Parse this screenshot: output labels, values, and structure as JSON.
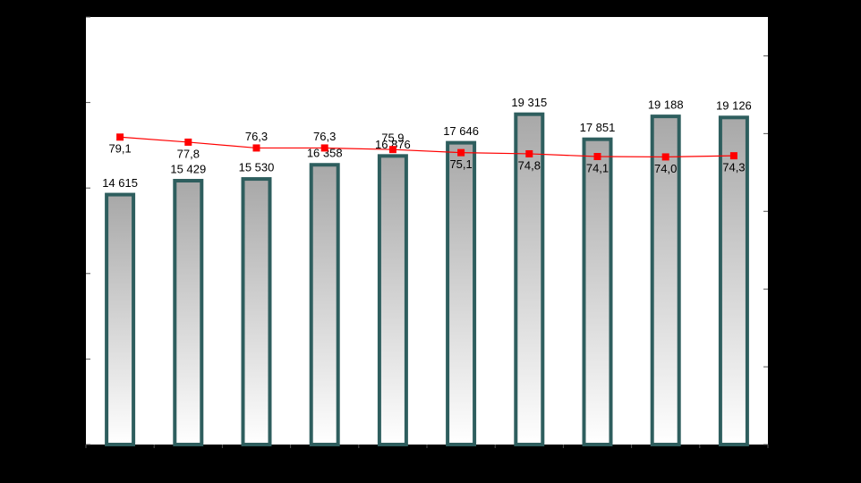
{
  "chart_data": {
    "type": "bar-line",
    "categories": [
      null,
      null,
      null,
      null,
      null,
      null,
      null,
      null,
      null,
      null
    ],
    "series": [
      {
        "type": "bar",
        "color": "#2e5e5e",
        "values": [
          14615,
          15429,
          15530,
          16358,
          16876,
          17646,
          19315,
          17851,
          19188,
          19126
        ],
        "value_labels": [
          "14 615",
          "15 429",
          "15 530",
          "16 358",
          "16 876",
          "17 646",
          "19 315",
          "17 851",
          "19 188",
          "19 126"
        ]
      },
      {
        "type": "line",
        "axis": "y2",
        "color": "#ff0000",
        "values": [
          79.1,
          77.8,
          76.3,
          76.3,
          75.9,
          75.1,
          74.8,
          74.1,
          74.0,
          74.3
        ],
        "value_labels": [
          "79,1",
          "77,8",
          "76,3",
          "76,3",
          "75,9",
          "75,1",
          "74,8",
          "74,1",
          "74,0",
          "74,3"
        ]
      }
    ],
    "ylim": [
      0,
      25000
    ],
    "yticks": [
      0,
      5000,
      10000,
      15000,
      20000,
      25000
    ],
    "y2lim": [
      0,
      110
    ],
    "y2ticks": [
      0,
      20,
      40,
      60,
      80,
      100
    ]
  }
}
